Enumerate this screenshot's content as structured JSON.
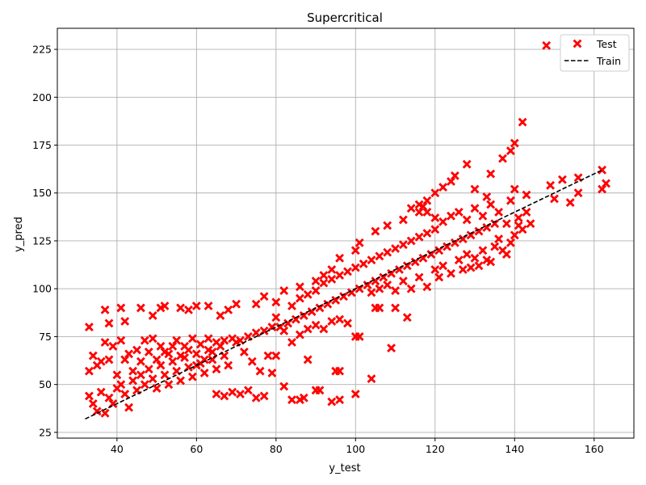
{
  "chart_data": {
    "type": "scatter",
    "title": "Supercritical",
    "xlabel": "y_test",
    "ylabel": "y_pred",
    "xlim": [
      25,
      170
    ],
    "ylim": [
      22,
      236
    ],
    "x_ticks": [
      "40",
      "60",
      "80",
      "100",
      "120",
      "140",
      "160"
    ],
    "y_ticks": [
      "25",
      "50",
      "75",
      "100",
      "125",
      "150",
      "175",
      "200",
      "225"
    ],
    "grid": true,
    "legend": {
      "placement": "top-right",
      "entries": [
        "Test",
        "Train"
      ]
    },
    "colors": {
      "test": "#ff0000",
      "train": "#000000",
      "grid": "#b0b0b0"
    },
    "series": [
      {
        "name": "Test",
        "marker": "x-filled",
        "points": [
          [
            148,
            227
          ],
          [
            142,
            187
          ],
          [
            140,
            176
          ],
          [
            139,
            172
          ],
          [
            128,
            165
          ],
          [
            134,
            160
          ],
          [
            125,
            159
          ],
          [
            137,
            168
          ],
          [
            162,
            162
          ],
          [
            156,
            158
          ],
          [
            152,
            157
          ],
          [
            149,
            154
          ],
          [
            150,
            147
          ],
          [
            154,
            145
          ],
          [
            162,
            152
          ],
          [
            163,
            155
          ],
          [
            156,
            150
          ],
          [
            130,
            152
          ],
          [
            133,
            148
          ],
          [
            143,
            149
          ],
          [
            140,
            152
          ],
          [
            120,
            150
          ],
          [
            122,
            153
          ],
          [
            124,
            156
          ],
          [
            118,
            146
          ],
          [
            117,
            143
          ],
          [
            116,
            140
          ],
          [
            112,
            136
          ],
          [
            108,
            133
          ],
          [
            105,
            130
          ],
          [
            101,
            124
          ],
          [
            100,
            120
          ],
          [
            96,
            116
          ],
          [
            94,
            110
          ],
          [
            92,
            107
          ],
          [
            90,
            104
          ],
          [
            86,
            101
          ],
          [
            82,
            99
          ],
          [
            80,
            93
          ],
          [
            77,
            96
          ],
          [
            75,
            92
          ],
          [
            70,
            92
          ],
          [
            68,
            89
          ],
          [
            66,
            86
          ],
          [
            63,
            91
          ],
          [
            60,
            91
          ],
          [
            58,
            89
          ],
          [
            56,
            90
          ],
          [
            52,
            91
          ],
          [
            51,
            90
          ],
          [
            49,
            86
          ],
          [
            46,
            90
          ],
          [
            41,
            90
          ],
          [
            37,
            89
          ],
          [
            38,
            82
          ],
          [
            42,
            83
          ],
          [
            33,
            80
          ],
          [
            34,
            65
          ],
          [
            36,
            62
          ],
          [
            37,
            72
          ],
          [
            39,
            70
          ],
          [
            41,
            73
          ],
          [
            43,
            66
          ],
          [
            45,
            68
          ],
          [
            47,
            73
          ],
          [
            49,
            74
          ],
          [
            51,
            70
          ],
          [
            53,
            66
          ],
          [
            55,
            73
          ],
          [
            57,
            70
          ],
          [
            59,
            74
          ],
          [
            61,
            71
          ],
          [
            63,
            74
          ],
          [
            65,
            72
          ],
          [
            67,
            73
          ],
          [
            69,
            74
          ],
          [
            71,
            73
          ],
          [
            73,
            75
          ],
          [
            75,
            77
          ],
          [
            77,
            78
          ],
          [
            79,
            80
          ],
          [
            81,
            80
          ],
          [
            83,
            82
          ],
          [
            85,
            84
          ],
          [
            87,
            86
          ],
          [
            89,
            88
          ],
          [
            91,
            90
          ],
          [
            93,
            92
          ],
          [
            95,
            94
          ],
          [
            97,
            96
          ],
          [
            99,
            98
          ],
          [
            101,
            100
          ],
          [
            103,
            102
          ],
          [
            105,
            104
          ],
          [
            107,
            106
          ],
          [
            109,
            108
          ],
          [
            111,
            110
          ],
          [
            113,
            112
          ],
          [
            115,
            114
          ],
          [
            117,
            116
          ],
          [
            119,
            118
          ],
          [
            121,
            120
          ],
          [
            123,
            122
          ],
          [
            125,
            124
          ],
          [
            127,
            126
          ],
          [
            129,
            128
          ],
          [
            131,
            130
          ],
          [
            133,
            132
          ],
          [
            135,
            134
          ],
          [
            33,
            44
          ],
          [
            34,
            40
          ],
          [
            35,
            36
          ],
          [
            36,
            46
          ],
          [
            37,
            35
          ],
          [
            38,
            43
          ],
          [
            39,
            40
          ],
          [
            40,
            48
          ],
          [
            41,
            50
          ],
          [
            42,
            45
          ],
          [
            43,
            38
          ],
          [
            44,
            52
          ],
          [
            45,
            47
          ],
          [
            46,
            55
          ],
          [
            47,
            50
          ],
          [
            48,
            58
          ],
          [
            49,
            53
          ],
          [
            50,
            48
          ],
          [
            51,
            60
          ],
          [
            52,
            55
          ],
          [
            53,
            50
          ],
          [
            54,
            62
          ],
          [
            55,
            57
          ],
          [
            56,
            52
          ],
          [
            57,
            64
          ],
          [
            58,
            59
          ],
          [
            59,
            54
          ],
          [
            60,
            66
          ],
          [
            61,
            61
          ],
          [
            62,
            56
          ],
          [
            63,
            68
          ],
          [
            64,
            63
          ],
          [
            65,
            58
          ],
          [
            66,
            70
          ],
          [
            67,
            65
          ],
          [
            68,
            60
          ],
          [
            70,
            72
          ],
          [
            72,
            67
          ],
          [
            74,
            62
          ],
          [
            76,
            57
          ],
          [
            78,
            65
          ],
          [
            33,
            57
          ],
          [
            35,
            60
          ],
          [
            38,
            63
          ],
          [
            40,
            55
          ],
          [
            42,
            63
          ],
          [
            44,
            57
          ],
          [
            46,
            62
          ],
          [
            48,
            67
          ],
          [
            50,
            63
          ],
          [
            52,
            67
          ],
          [
            54,
            70
          ],
          [
            56,
            65
          ],
          [
            58,
            68
          ],
          [
            60,
            60
          ],
          [
            62,
            63
          ],
          [
            64,
            67
          ],
          [
            65,
            45
          ],
          [
            67,
            44
          ],
          [
            69,
            46
          ],
          [
            71,
            45
          ],
          [
            73,
            47
          ],
          [
            75,
            43
          ],
          [
            77,
            44
          ],
          [
            79,
            56
          ],
          [
            80,
            65
          ],
          [
            82,
            49
          ],
          [
            84,
            42
          ],
          [
            86,
            42
          ],
          [
            87,
            43
          ],
          [
            88,
            63
          ],
          [
            90,
            47
          ],
          [
            91,
            47
          ],
          [
            94,
            41
          ],
          [
            95,
            57
          ],
          [
            96,
            42
          ],
          [
            96,
            57
          ],
          [
            100,
            45
          ],
          [
            100,
            75
          ],
          [
            101,
            75
          ],
          [
            104,
            53
          ],
          [
            105,
            90
          ],
          [
            106,
            90
          ],
          [
            109,
            69
          ],
          [
            110,
            90
          ],
          [
            113,
            85
          ],
          [
            84,
            72
          ],
          [
            86,
            76
          ],
          [
            88,
            79
          ],
          [
            90,
            81
          ],
          [
            92,
            79
          ],
          [
            94,
            83
          ],
          [
            96,
            84
          ],
          [
            98,
            82
          ],
          [
            82,
            78
          ],
          [
            80,
            85
          ],
          [
            84,
            91
          ],
          [
            86,
            95
          ],
          [
            88,
            97
          ],
          [
            90,
            99
          ],
          [
            92,
            103
          ],
          [
            94,
            105
          ],
          [
            96,
            107
          ],
          [
            98,
            109
          ],
          [
            100,
            111
          ],
          [
            102,
            113
          ],
          [
            104,
            115
          ],
          [
            106,
            117
          ],
          [
            108,
            119
          ],
          [
            110,
            121
          ],
          [
            112,
            123
          ],
          [
            114,
            125
          ],
          [
            116,
            127
          ],
          [
            118,
            129
          ],
          [
            120,
            131
          ],
          [
            104,
            98
          ],
          [
            106,
            100
          ],
          [
            108,
            102
          ],
          [
            110,
            99
          ],
          [
            112,
            104
          ],
          [
            114,
            100
          ],
          [
            116,
            106
          ],
          [
            118,
            101
          ],
          [
            120,
            110
          ],
          [
            121,
            106
          ],
          [
            122,
            112
          ],
          [
            124,
            108
          ],
          [
            126,
            115
          ],
          [
            127,
            110
          ],
          [
            128,
            118
          ],
          [
            129,
            111
          ],
          [
            130,
            116
          ],
          [
            131,
            112
          ],
          [
            132,
            120
          ],
          [
            133,
            115
          ],
          [
            134,
            114
          ],
          [
            135,
            122
          ],
          [
            136,
            126
          ],
          [
            137,
            120
          ],
          [
            138,
            118
          ],
          [
            139,
            124
          ],
          [
            140,
            128
          ],
          [
            141,
            133
          ],
          [
            141,
            137
          ],
          [
            142,
            131
          ],
          [
            143,
            140
          ],
          [
            144,
            134
          ],
          [
            114,
            142
          ],
          [
            116,
            144
          ],
          [
            118,
            140
          ],
          [
            120,
            137
          ],
          [
            122,
            135
          ],
          [
            124,
            138
          ],
          [
            126,
            140
          ],
          [
            128,
            136
          ],
          [
            130,
            142
          ],
          [
            132,
            138
          ],
          [
            134,
            144
          ],
          [
            136,
            140
          ],
          [
            138,
            134
          ],
          [
            139,
            146
          ]
        ]
      },
      {
        "name": "Train",
        "line": "dashed",
        "points": [
          [
            32,
            32
          ],
          [
            162,
            162
          ]
        ]
      }
    ]
  }
}
